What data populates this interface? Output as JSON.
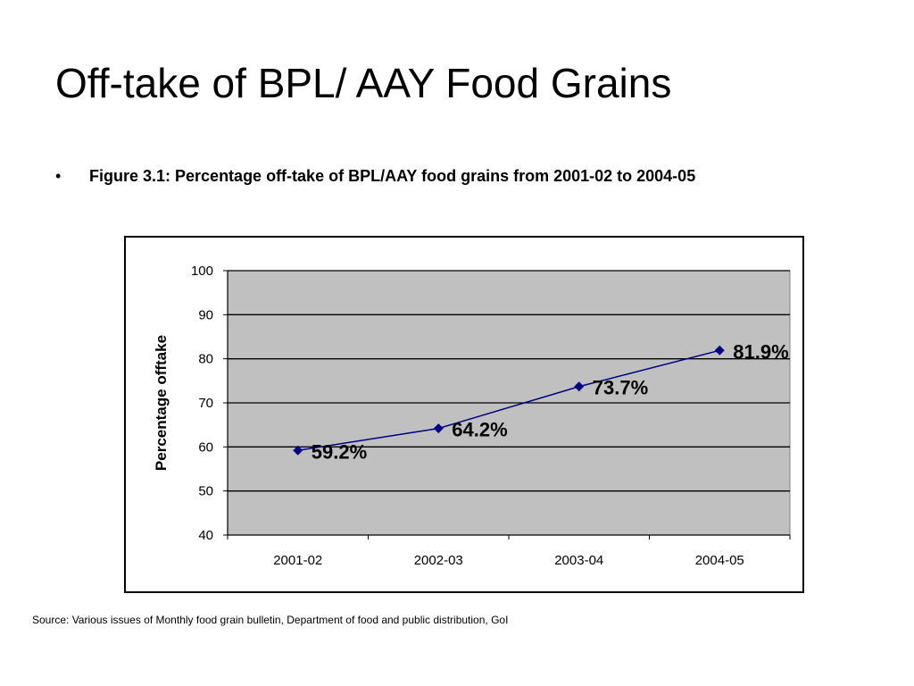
{
  "slide": {
    "title": "Off-take of BPL/ AAY Food Grains",
    "bullet_symbol": "•",
    "bullet_text": "Figure 3.1: Percentage off-take of BPL/AAY food grains from 2001-02 to 2004-05",
    "source": "Source: Various issues of Monthly food grain bulletin, Department of food and public distribution, GoI"
  },
  "chart_data": {
    "type": "line",
    "title": "",
    "xlabel": "",
    "ylabel": "Percentage offtake",
    "categories": [
      "2001-02",
      "2002-03",
      "2003-04",
      "2004-05"
    ],
    "series": [
      {
        "values": [
          59.2,
          64.2,
          73.7,
          81.9
        ]
      }
    ],
    "data_labels": [
      "59.2%",
      "64.2%",
      "73.7%",
      "81.9%"
    ],
    "ylim": [
      40,
      100
    ],
    "yticks": [
      40,
      50,
      60,
      70,
      80,
      90,
      100
    ],
    "grid": true,
    "legend": "none",
    "colors": {
      "plot_background": "#c0c0c0",
      "line": "#000080",
      "gridline": "#000000"
    }
  }
}
